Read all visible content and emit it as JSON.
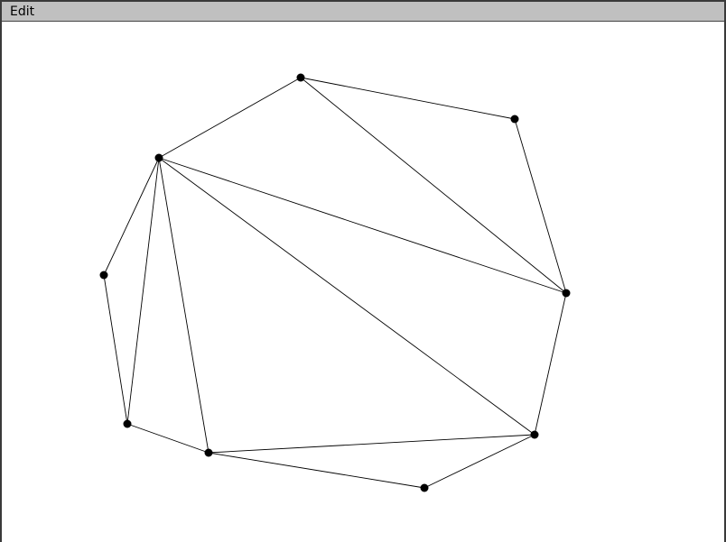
{
  "menu": {
    "items": [
      {
        "label": "Edit"
      }
    ]
  },
  "graph": {
    "vertex_color": "#000000",
    "edge_color": "#000000",
    "background_color": "#ffffff"
  }
}
